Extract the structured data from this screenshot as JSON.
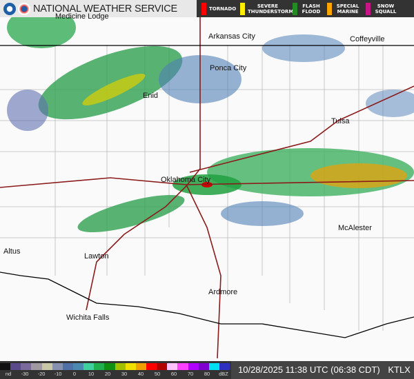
{
  "header": {
    "title": "NATIONAL WEATHER SERVICE",
    "logos": [
      "noaa-logo",
      "nws-logo"
    ]
  },
  "warnings": [
    {
      "label": "TORNADO",
      "color": "#ff0000"
    },
    {
      "label": "SEVERE THUNDERSTORM",
      "color": "#ffee00"
    },
    {
      "label": "FLASH FLOOD",
      "color": "#228b22"
    },
    {
      "label": "SPECIAL MARINE",
      "color": "#ffa500"
    },
    {
      "label": "SNOW SQUALL",
      "color": "#c71585"
    }
  ],
  "cities": [
    "Medicine Lodge",
    "Arkansas City",
    "Coffeyville",
    "Ponca City",
    "Enid",
    "Tulsa",
    "Oklahoma City",
    "McAlester",
    "Altus",
    "Lawton",
    "Ardmore",
    "Wichita Falls"
  ],
  "legend": {
    "ticks": [
      "nd",
      "-30",
      "-20",
      "-10",
      "0",
      "10",
      "20",
      "30",
      "40",
      "50",
      "60",
      "70",
      "80",
      "dBZ"
    ],
    "colors": [
      "#111111",
      "#5a4a8a",
      "#7a6a9a",
      "#a09aa0",
      "#c8c8a8",
      "#8890b0",
      "#5070a8",
      "#4a8ab0",
      "#40d0a0",
      "#20b050",
      "#109010",
      "#a0c000",
      "#f0e000",
      "#f0a000",
      "#ff0000",
      "#b00000",
      "#ffc0ff",
      "#ff40ff",
      "#b000ff",
      "#8000d0",
      "#00e0f0",
      "#3030c0"
    ]
  },
  "timestamp": "10/28/2025 11:38 UTC (06:38 CDT)",
  "station": "KTLX"
}
